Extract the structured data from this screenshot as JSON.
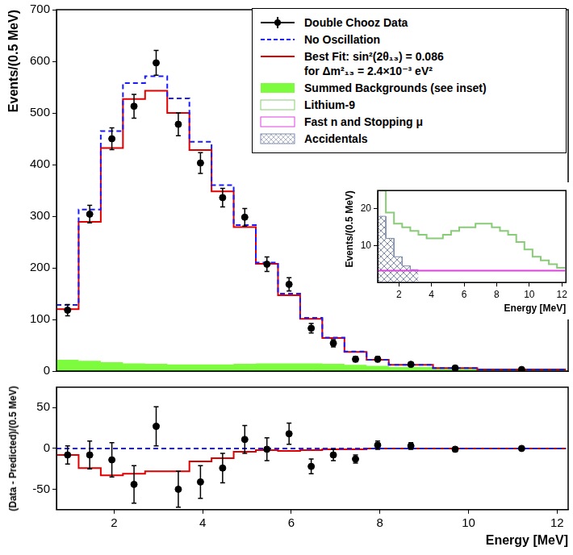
{
  "chart_data": [
    {
      "type": "histogram",
      "y_label": "Events/(0.5 MeV)",
      "xlim": [
        0.7,
        12.25
      ],
      "xticks": [
        2,
        4,
        6,
        8,
        10,
        12
      ],
      "ylim": [
        0,
        700
      ],
      "yticks": [
        0,
        100,
        200,
        300,
        400,
        500,
        600,
        700
      ],
      "tick_labels": "y",
      "grid": false,
      "legend": "upper right",
      "bins": [
        0.7,
        1.2,
        1.7,
        2.2,
        2.7,
        3.2,
        3.7,
        4.2,
        4.7,
        5.2,
        5.7,
        6.2,
        6.7,
        7.2,
        7.7,
        8.2,
        9.2,
        10.2,
        12.2
      ],
      "series": [
        {
          "name": "Double Chooz Data",
          "type": "scatter",
          "color": "#000000",
          "marker": "circle",
          "x": [
            0.95,
            1.45,
            1.95,
            2.45,
            2.95,
            3.45,
            3.95,
            4.45,
            4.95,
            5.45,
            5.95,
            6.45,
            6.95,
            7.45,
            7.95,
            8.7,
            9.7,
            11.2
          ],
          "values": [
            118,
            304,
            450,
            513,
            597,
            478,
            403,
            336,
            298,
            207,
            168,
            83,
            54,
            23,
            23,
            13,
            6,
            3
          ],
          "errors": [
            11,
            17,
            21,
            23,
            24,
            22,
            20,
            18,
            17,
            14,
            13,
            9,
            7,
            5,
            5,
            4,
            2.5,
            2
          ]
        },
        {
          "name": "No Oscillation",
          "type": "step",
          "color": "#1a1aff",
          "line_style": "dashed",
          "values": [
            128,
            313,
            465,
            558,
            571,
            528,
            444,
            360,
            283,
            210,
            150,
            103,
            65,
            38,
            22,
            12,
            6,
            3
          ]
        },
        {
          "name": "Best Fit: sin²(2θ₁₃) = 0.086\nfor Δm²₁₃ = 2.4×10⁻³ eV²",
          "type": "step",
          "color": "#e00000",
          "line_style": "solid",
          "values": [
            120,
            289,
            432,
            527,
            543,
            500,
            428,
            348,
            279,
            208,
            147,
            101,
            64,
            37,
            22,
            12,
            6,
            3
          ]
        },
        {
          "name": "Summed Backgrounds (see inset)",
          "type": "area",
          "color": "#7cfc3c",
          "values": [
            22,
            20,
            17,
            15,
            14,
            13,
            13,
            13,
            14,
            15,
            15,
            15,
            14,
            12,
            10,
            8,
            5,
            4
          ]
        }
      ]
    },
    {
      "type": "histogram",
      "x_label": "Energy [MeV]",
      "y_label": "(Data - Predicted)/(0.5 MeV)",
      "xlim": [
        0.7,
        12.25
      ],
      "xticks": [
        2,
        4,
        6,
        8,
        10,
        12
      ],
      "ylim": [
        -75,
        75
      ],
      "yticks": [
        -50,
        0,
        50
      ],
      "grid": false,
      "bins": [
        0.7,
        1.2,
        1.7,
        2.2,
        2.7,
        3.2,
        3.7,
        4.2,
        4.7,
        5.2,
        5.7,
        6.2,
        6.7,
        7.2,
        7.7,
        8.2,
        9.2,
        10.2,
        12.2
      ],
      "series": [
        {
          "type": "scatter",
          "color": "#000000",
          "marker": "circle",
          "x": [
            0.95,
            1.45,
            1.95,
            2.45,
            2.95,
            3.45,
            3.95,
            4.45,
            4.95,
            5.45,
            5.95,
            6.45,
            6.95,
            7.45,
            7.95,
            8.7,
            9.7,
            11.2
          ],
          "values": [
            -8,
            -8,
            -14,
            -44,
            27,
            -50,
            -41,
            -24,
            11,
            -1,
            18,
            -22,
            -8,
            -13,
            4,
            3,
            -1,
            0
          ],
          "errors": [
            11,
            17,
            21,
            23,
            24,
            22,
            20,
            18,
            17,
            14,
            13,
            9,
            7,
            5,
            5,
            4,
            2.5,
            2
          ]
        },
        {
          "type": "step",
          "color": "#1a1aff",
          "line_style": "dashed",
          "values": [
            0,
            0,
            0,
            0,
            0,
            0,
            0,
            0,
            0,
            0,
            0,
            0,
            0,
            0,
            0,
            0,
            0,
            0
          ]
        },
        {
          "type": "step",
          "color": "#e00000",
          "line_style": "solid",
          "values": [
            -8,
            -24,
            -33,
            -31,
            -28,
            -28,
            -16,
            -12,
            -4,
            -2,
            -3,
            -2,
            -1,
            -1,
            0,
            0,
            0,
            0
          ]
        }
      ]
    },
    {
      "type": "histogram",
      "x_label": "Energy [MeV]",
      "y_label": "Events/(0.5 MeV)",
      "xlim": [
        0.7,
        12.25
      ],
      "xticks": [
        2,
        4,
        6,
        8,
        10,
        12
      ],
      "ylim": [
        0,
        25
      ],
      "yticks": [
        10,
        20
      ],
      "grid": false,
      "series": [
        {
          "name": "Lithium-9",
          "type": "step",
          "color": "#88cc77",
          "line_style": "solid",
          "bins": [
            0.7,
            1.2,
            1.7,
            2.2,
            2.7,
            3.2,
            3.7,
            4.2,
            4.7,
            5.2,
            5.7,
            6.2,
            6.7,
            7.2,
            7.7,
            8.2,
            8.7,
            9.2,
            9.7,
            10.2,
            10.7,
            11.2,
            11.7,
            12.2
          ],
          "values": [
            25,
            19,
            16,
            15,
            14,
            13,
            12,
            12,
            13,
            14,
            15,
            15,
            16,
            16,
            15,
            14,
            13,
            11,
            9,
            7,
            6,
            5,
            4
          ]
        },
        {
          "name": "Fast n and Stopping μ",
          "type": "step",
          "color": "#e040e0",
          "line_style": "solid",
          "bins": [
            0.7,
            12.2
          ],
          "values": [
            3.2
          ]
        },
        {
          "name": "Accidentals",
          "type": "hatched",
          "color": "#7f8cae",
          "bins": [
            0.7,
            1.2,
            1.7,
            2.2,
            2.7,
            3.2
          ],
          "values": [
            18,
            12,
            7,
            4.5,
            3.5
          ]
        }
      ]
    }
  ]
}
